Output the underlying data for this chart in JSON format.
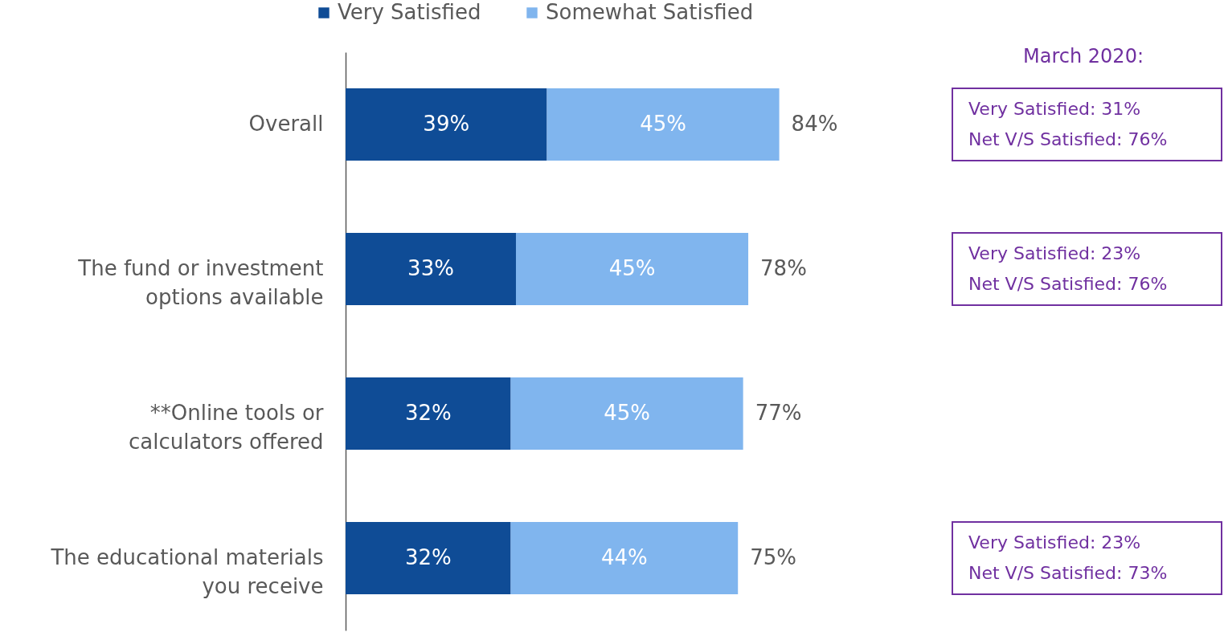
{
  "chart_data": {
    "type": "bar",
    "orientation": "horizontal",
    "stacked": true,
    "legend": "top",
    "tick_labels": "y",
    "categories": [
      "Overall",
      "The fund or investment options available",
      "**Online tools or calculators offered",
      "The educational materials you receive"
    ],
    "series": [
      {
        "name": "Very Satisfied",
        "color": "#0f4c96",
        "values": [
          39,
          33,
          32,
          32
        ],
        "value_labels": [
          "39%",
          "33%",
          "32%",
          "32%"
        ]
      },
      {
        "name": "Somewhat Satisfied",
        "color": "#80b5ee",
        "values": [
          45,
          45,
          45,
          44
        ],
        "value_labels": [
          "45%",
          "45%",
          "45%",
          "44%"
        ]
      }
    ],
    "totals": [
      "84%",
      "78%",
      "77%",
      "75%"
    ],
    "annotations": [
      "March 2020:",
      "Very Satisfied: 31%",
      "Net V/S Satisfied: 76%",
      "Very Satisfied: 23%",
      "Net V/S Satisfied: 76%",
      "Very Satisfied: 23%",
      "Net V/S Satisfied: 73%"
    ]
  }
}
